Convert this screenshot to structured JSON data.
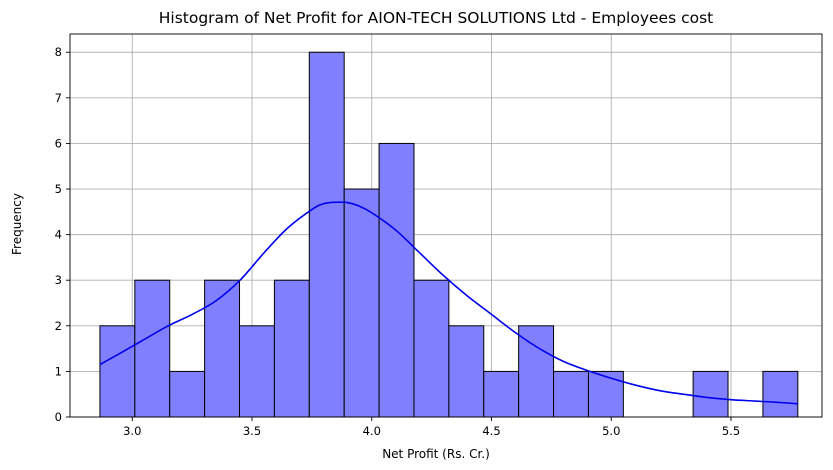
{
  "chart_data": {
    "type": "bar",
    "subtype": "histogram",
    "title": "Histogram of Net Profit for AION-TECH SOLUTIONS Ltd - Employees cost",
    "xlabel": "Net Profit (Rs. Cr.)",
    "ylabel": "Frequency",
    "xlim": [
      2.74,
      5.88
    ],
    "ylim": [
      0,
      8.4
    ],
    "grid": true,
    "bin_start": 2.865,
    "bin_width": 0.1457,
    "values": [
      2,
      3,
      1,
      3,
      2,
      3,
      8,
      5,
      6,
      3,
      2,
      1,
      2,
      1,
      1,
      0,
      0,
      1,
      0,
      1
    ],
    "xticks": [
      3.0,
      3.5,
      4.0,
      4.5,
      5.0,
      5.5
    ],
    "xtick_labels": [
      "3.0",
      "3.5",
      "4.0",
      "4.5",
      "5.0",
      "5.5"
    ],
    "yticks": [
      0,
      1,
      2,
      3,
      4,
      5,
      6,
      7,
      8
    ],
    "ytick_labels": [
      "0",
      "1",
      "2",
      "3",
      "4",
      "5",
      "6",
      "7",
      "8"
    ],
    "kde": {
      "x": [
        2.865,
        2.95,
        3.05,
        3.15,
        3.25,
        3.35,
        3.45,
        3.55,
        3.65,
        3.75,
        3.8,
        3.85,
        3.9,
        3.95,
        4.0,
        4.1,
        4.2,
        4.3,
        4.4,
        4.5,
        4.6,
        4.7,
        4.8,
        4.9,
        5.0,
        5.1,
        5.2,
        5.3,
        5.4,
        5.5,
        5.6,
        5.7,
        5.78
      ],
      "y": [
        1.15,
        1.4,
        1.7,
        2.0,
        2.25,
        2.55,
        3.0,
        3.6,
        4.15,
        4.55,
        4.68,
        4.71,
        4.7,
        4.62,
        4.48,
        4.1,
        3.6,
        3.1,
        2.65,
        2.25,
        1.85,
        1.5,
        1.22,
        1.02,
        0.85,
        0.7,
        0.58,
        0.5,
        0.43,
        0.38,
        0.35,
        0.32,
        0.29
      ]
    },
    "bar_color": "#8080ff",
    "line_color": "#0000ee"
  }
}
